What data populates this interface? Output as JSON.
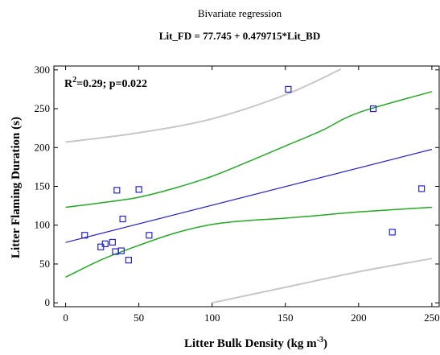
{
  "chart_data": {
    "type": "scatter",
    "title": "Bivariate regression",
    "subtitle": "Lit_FD = 77.745 + 0.479715*Lit_BD",
    "xlabel_main": "Litter Bulk Density (kg m",
    "xlabel_sup": "-3",
    "xlabel_close": ")",
    "ylabel": "Litter Flaming Duration (s)",
    "annotation_main": "R",
    "annotation_sup": "2",
    "annotation_rest": "=0.29; p=0.022",
    "xlim": [
      -8,
      255
    ],
    "ylim": [
      -5,
      305
    ],
    "xticks": [
      0,
      50,
      100,
      150,
      200,
      250
    ],
    "yticks": [
      0,
      50,
      100,
      150,
      200,
      250,
      300
    ],
    "regression": {
      "intercept": 77.745,
      "slope": 0.479715
    },
    "points": [
      {
        "x": 13,
        "y": 87
      },
      {
        "x": 24,
        "y": 72
      },
      {
        "x": 27,
        "y": 76
      },
      {
        "x": 32,
        "y": 78
      },
      {
        "x": 34,
        "y": 66
      },
      {
        "x": 35,
        "y": 145
      },
      {
        "x": 38,
        "y": 67
      },
      {
        "x": 39,
        "y": 108
      },
      {
        "x": 43,
        "y": 55
      },
      {
        "x": 50,
        "y": 146
      },
      {
        "x": 57,
        "y": 87
      },
      {
        "x": 152,
        "y": 275
      },
      {
        "x": 210,
        "y": 250
      },
      {
        "x": 223,
        "y": 91
      },
      {
        "x": 243,
        "y": 147
      }
    ],
    "confidence_upper": [
      [
        0,
        123
      ],
      [
        25,
        129
      ],
      [
        50,
        136
      ],
      [
        75,
        148
      ],
      [
        100,
        163
      ],
      [
        125,
        182
      ],
      [
        150,
        202
      ],
      [
        175,
        222
      ],
      [
        200,
        245
      ],
      [
        250,
        272
      ]
    ],
    "confidence_lower": [
      [
        0,
        33
      ],
      [
        25,
        56
      ],
      [
        50,
        74
      ],
      [
        75,
        90
      ],
      [
        100,
        101
      ],
      [
        125,
        106
      ],
      [
        150,
        109
      ],
      [
        175,
        113
      ],
      [
        200,
        117
      ],
      [
        250,
        123
      ]
    ],
    "prediction_upper": [
      [
        0,
        207
      ],
      [
        50,
        219
      ],
      [
        100,
        237
      ],
      [
        150,
        268
      ],
      [
        188,
        301
      ]
    ],
    "prediction_lower": [
      [
        100,
        0
      ],
      [
        150,
        20
      ],
      [
        200,
        40
      ],
      [
        250,
        57
      ]
    ],
    "colors": {
      "points": "#2222dd",
      "regression": "#2222cc",
      "confidence": "#22aa22",
      "prediction": "#c8c8c8",
      "axis": "#000000"
    }
  }
}
